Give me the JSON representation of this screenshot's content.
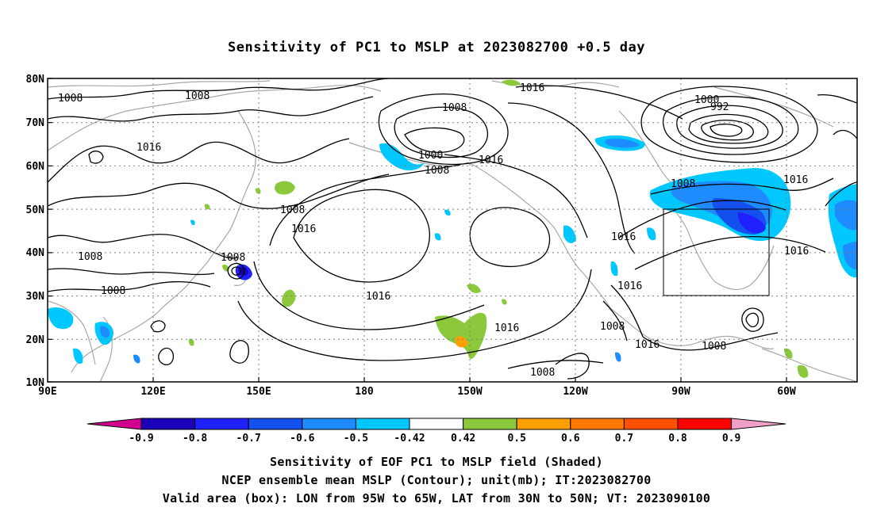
{
  "title": "Sensitivity of PC1 to MSLP at 2023082700 +0.5 day",
  "map": {
    "lat_labels": [
      "80N",
      "70N",
      "60N",
      "50N",
      "40N",
      "30N",
      "20N",
      "10N"
    ],
    "lon_labels": [
      "90E",
      "120E",
      "150E",
      "180",
      "150W",
      "120W",
      "90W",
      "60W"
    ],
    "lon_range_deg_east": [
      90,
      320
    ],
    "lat_range": [
      10,
      80
    ],
    "grid": "dotted",
    "valid_box": {
      "lon_from": "95W",
      "lon_to": "65W",
      "lat_from": "30N",
      "lat_to": "50N"
    }
  },
  "contour_labels": {
    "l1008": "1008",
    "l1016": "1016",
    "l1000": "1000",
    "l992": "992"
  },
  "colorbar": {
    "labels": [
      "-0.9",
      "-0.8",
      "-0.7",
      "-0.6",
      "-0.5",
      "-0.42",
      "0.42",
      "0.5",
      "0.6",
      "0.7",
      "0.8",
      "0.9"
    ],
    "colors": [
      "#1a00b8",
      "#2020ff",
      "#1450ee",
      "#1e8cff",
      "#00c8ff",
      "#ffffff",
      "#8cc83c",
      "#ffa000",
      "#ff7800",
      "#ff5000",
      "#ff0000"
    ],
    "low_arrow_color": "#d2008c",
    "high_arrow_color": "#f0a0c8"
  },
  "captions": {
    "line1": "Sensitivity of EOF PC1 to MSLP field (Shaded)",
    "line2": "NCEP ensemble mean MSLP (Contour); unit(mb); IT:2023082700",
    "line3": "Valid area (box): LON from 95W to 65W, LAT from 30N to 50N; VT: 2023090100"
  }
}
